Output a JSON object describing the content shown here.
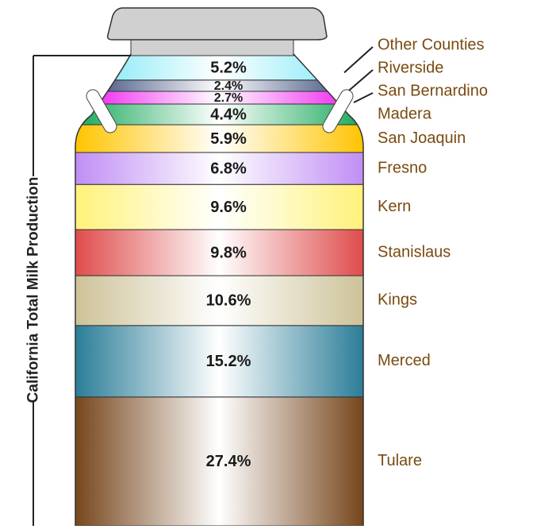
{
  "chart_data": {
    "type": "stacked-can",
    "axis_label": "California Total Milk Production",
    "categories": [
      "Other Counties",
      "Riverside",
      "San Bernardino",
      "Madera",
      "San Joaquin",
      "Fresno",
      "Kern",
      "Stanislaus",
      "Kings",
      "Merced",
      "Tulare"
    ],
    "values": [
      5.2,
      2.4,
      2.7,
      4.4,
      5.9,
      6.8,
      9.6,
      9.8,
      10.6,
      15.2,
      27.4
    ],
    "value_labels": [
      "5.2%",
      "2.4%",
      "2.7%",
      "4.4%",
      "5.9%",
      "6.8%",
      "9.6%",
      "9.8%",
      "10.6%",
      "15.2%",
      "27.4%"
    ],
    "colors": [
      "#6fe6f6",
      "#2c3e70",
      "#ee10ee",
      "#18a85a",
      "#ffc400",
      "#c08ef5",
      "#fff27a",
      "#e04c4c",
      "#cdc298",
      "#2b7d98",
      "#76461c"
    ]
  }
}
